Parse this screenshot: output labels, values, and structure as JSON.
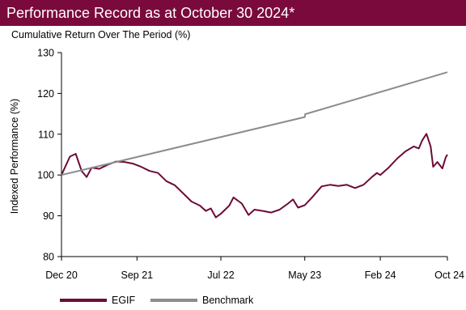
{
  "header": {
    "title": "Performance Record as at October 30 2024*",
    "bg_color": "#7a0a3c"
  },
  "chart_data": {
    "type": "line",
    "subtitle": "Cumulative Return Over The Period (%)",
    "xlabel": "",
    "ylabel": "Indexed Performance (%)",
    "ylim": [
      80,
      130
    ],
    "yticks": [
      80,
      90,
      100,
      110,
      120,
      130
    ],
    "x_start": "Dec 20",
    "x_end": "Oct 24",
    "xticks": [
      {
        "label": "Dec 20",
        "t": 0
      },
      {
        "label": "Sep 21",
        "t": 9
      },
      {
        "label": "Jul 22",
        "t": 19
      },
      {
        "label": "May 23",
        "t": 29
      },
      {
        "label": "Feb 24",
        "t": 38
      },
      {
        "label": "Oct 24",
        "t": 46
      }
    ],
    "grid": false,
    "legend_position": "bottom",
    "series": [
      {
        "name": "EGIF",
        "color": "#6e0a38",
        "points": [
          [
            0,
            100
          ],
          [
            1,
            104.5
          ],
          [
            1.7,
            105.2
          ],
          [
            2.4,
            101
          ],
          [
            3,
            99.5
          ],
          [
            3.6,
            101.8
          ],
          [
            4.5,
            101.5
          ],
          [
            5.5,
            102.5
          ],
          [
            6.5,
            103.3
          ],
          [
            7.5,
            103.2
          ],
          [
            8.5,
            102.8
          ],
          [
            9.5,
            102
          ],
          [
            10.5,
            101
          ],
          [
            11.5,
            100.5
          ],
          [
            12.5,
            98.5
          ],
          [
            13.5,
            97.5
          ],
          [
            14.5,
            95.5
          ],
          [
            15.5,
            93.5
          ],
          [
            16.5,
            92.5
          ],
          [
            17.2,
            91.2
          ],
          [
            17.8,
            91.8
          ],
          [
            18.4,
            89.6
          ],
          [
            19,
            90.5
          ],
          [
            20,
            92.5
          ],
          [
            20.5,
            94.5
          ],
          [
            21.5,
            93
          ],
          [
            22.3,
            90.2
          ],
          [
            23,
            91.5
          ],
          [
            24,
            91.2
          ],
          [
            25,
            90.8
          ],
          [
            26,
            91.5
          ],
          [
            27,
            93
          ],
          [
            27.6,
            94
          ],
          [
            28.2,
            92
          ],
          [
            29,
            92.6
          ],
          [
            30,
            94.8
          ],
          [
            31,
            97.2
          ],
          [
            32,
            97.6
          ],
          [
            33,
            97.3
          ],
          [
            34,
            97.6
          ],
          [
            35,
            96.8
          ],
          [
            36,
            97.6
          ],
          [
            37,
            99.5
          ],
          [
            37.6,
            100.5
          ],
          [
            38,
            100
          ],
          [
            39,
            101.8
          ],
          [
            40,
            104
          ],
          [
            41,
            105.8
          ],
          [
            42,
            107
          ],
          [
            42.6,
            106.5
          ],
          [
            43,
            108.5
          ],
          [
            43.5,
            110.1
          ],
          [
            44,
            107
          ],
          [
            44.3,
            102
          ],
          [
            44.8,
            103.2
          ],
          [
            45.4,
            101.6
          ],
          [
            45.8,
            104.3
          ],
          [
            46,
            105
          ]
        ]
      },
      {
        "name": "Benchmark",
        "color": "#8c8c8c",
        "points": [
          [
            0,
            100
          ],
          [
            29,
            114.2
          ],
          [
            29.05,
            114.9
          ],
          [
            46,
            125.2
          ]
        ]
      }
    ]
  }
}
